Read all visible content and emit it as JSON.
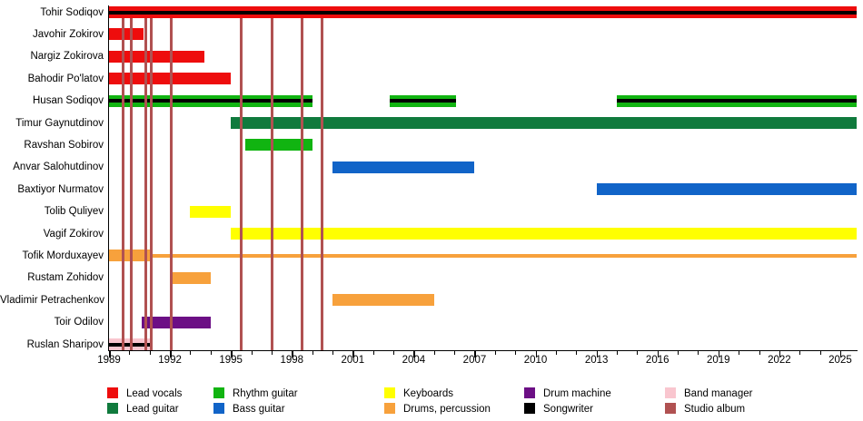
{
  "chart_data": {
    "type": "timeline",
    "x_axis": {
      "start_year": 1989,
      "end_year": 2025.85,
      "bars_end": 2025.8,
      "tick_label_years": [
        1989,
        1992,
        1995,
        1998,
        2001,
        2004,
        2007,
        2010,
        2013,
        2016,
        2019,
        2022,
        2025
      ],
      "minor_tick_every": 1,
      "major_tick_every": 3
    },
    "colors": {
      "Lead vocals": "#ee0d0d",
      "Lead guitar": "#107a3d",
      "Rhythm guitar": "#11b411",
      "Bass guitar": "#1164c8",
      "Keyboards": "#ffff00",
      "Drums, percussion": "#f7a13c",
      "Drum machine": "#6c0f85",
      "Songwriter": "#000000",
      "Band manager": "#f9c6cf",
      "Studio album": "#b05151"
    },
    "members": [
      {
        "name": "Tohir Sodiqov",
        "bars": [
          {
            "role": "Lead vocals",
            "start": 1989,
            "end": 2025.8,
            "songwriter": true
          }
        ]
      },
      {
        "name": "Javohir Zokirov",
        "bars": [
          {
            "role": "Lead vocals",
            "start": 1989,
            "end": 1990.7
          }
        ]
      },
      {
        "name": "Nargiz Zokirova",
        "bars": [
          {
            "role": "Lead vocals",
            "start": 1989,
            "end": 1993.7
          }
        ]
      },
      {
        "name": "Bahodir Po'latov",
        "bars": [
          {
            "role": "Lead vocals",
            "start": 1989,
            "end": 1995
          }
        ]
      },
      {
        "name": "Husan Sodiqov",
        "bars": [
          {
            "role": "Rhythm guitar",
            "start": 1989,
            "end": 1999,
            "songwriter": true
          },
          {
            "role": "Rhythm guitar",
            "start": 2002.8,
            "end": 2006.1,
            "songwriter": true
          },
          {
            "role": "Rhythm guitar",
            "start": 2014,
            "end": 2025.8,
            "songwriter": true
          }
        ]
      },
      {
        "name": "Timur Gaynutdinov",
        "bars": [
          {
            "role": "Lead guitar",
            "start": 1995,
            "end": 2025.8
          }
        ]
      },
      {
        "name": "Ravshan Sobirov",
        "bars": [
          {
            "role": "Rhythm guitar",
            "start": 1995.7,
            "end": 1999
          }
        ]
      },
      {
        "name": "Anvar Salohutdinov",
        "bars": [
          {
            "role": "Bass guitar",
            "start": 2000,
            "end": 2007
          }
        ]
      },
      {
        "name": "Baxtiyor Nurmatov",
        "bars": [
          {
            "role": "Bass guitar",
            "start": 2013,
            "end": 2025.8
          }
        ]
      },
      {
        "name": "Tolib Quliyev",
        "bars": [
          {
            "role": "Keyboards",
            "start": 1993,
            "end": 1995
          }
        ]
      },
      {
        "name": "Vagif Zokirov",
        "bars": [
          {
            "role": "Keyboards",
            "start": 1995,
            "end": 2025.8
          }
        ]
      },
      {
        "name": "Tofik Morduxayev",
        "bars": [
          {
            "role": "Drums, percussion",
            "start": 1989,
            "end": 1991.1
          },
          {
            "role": "Drums, percussion",
            "start": 1991.1,
            "end": 2025.8,
            "thin": true
          }
        ]
      },
      {
        "name": "Rustam Zohidov",
        "bars": [
          {
            "role": "Drums, percussion",
            "start": 1992,
            "end": 1994
          }
        ]
      },
      {
        "name": "Vladimir Petrachenkov",
        "bars": [
          {
            "role": "Drums, percussion",
            "start": 2000,
            "end": 2005
          }
        ]
      },
      {
        "name": "Toir Odilov",
        "bars": [
          {
            "role": "Drum machine",
            "start": 1990.6,
            "end": 1994
          }
        ]
      },
      {
        "name": "Ruslan Sharipov",
        "bars": [
          {
            "role": "Band manager",
            "start": 1989,
            "end": 1991.1,
            "songwriter": true
          }
        ]
      }
    ],
    "album_release_lines": [
      1989.7,
      1990.1,
      1990.8,
      1991.1,
      1992.05,
      1995.5,
      1997.05,
      1998.5,
      1999.5
    ],
    "legend": {
      "columns": [
        [
          {
            "label": "Lead vocals"
          },
          {
            "label": "Lead guitar"
          }
        ],
        [
          {
            "label": "Rhythm guitar"
          },
          {
            "label": "Bass guitar"
          }
        ],
        [
          {
            "label": "Keyboards"
          },
          {
            "label": "Drums, percussion"
          }
        ],
        [
          {
            "label": "Drum machine"
          },
          {
            "label": "Songwriter"
          }
        ],
        [
          {
            "label": "Band manager"
          },
          {
            "label": "Studio album"
          }
        ]
      ]
    }
  }
}
